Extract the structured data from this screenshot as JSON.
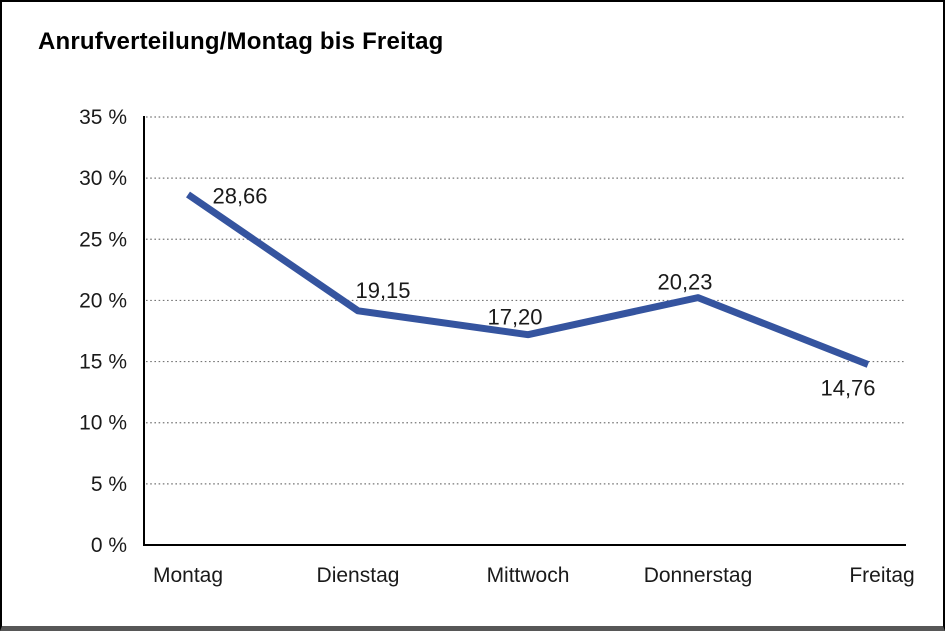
{
  "title": "Anrufverteilung/Montag bis Freitag",
  "chart_data": {
    "type": "line",
    "title": "Anrufverteilung/Montag bis Freitag",
    "categories": [
      "Montag",
      "Dienstag",
      "Mittwoch",
      "Donnerstag",
      "Freitag"
    ],
    "series": [
      {
        "name": "Anrufverteilung",
        "values": [
          28.66,
          19.15,
          17.2,
          20.23,
          14.76
        ]
      }
    ],
    "point_labels": [
      "28,66",
      "19,15",
      "17,20",
      "20,23",
      "14,76"
    ],
    "y_tick_values": [
      0,
      5,
      10,
      15,
      20,
      25,
      30,
      35
    ],
    "y_tick_labels": [
      "0 %",
      "5 %",
      "10 %",
      "15 %",
      "20 %",
      "25 %",
      "30 %",
      "35 %"
    ],
    "xlabel": "",
    "ylabel": "",
    "ylim": [
      0,
      35
    ],
    "grid": "horizontal-dotted",
    "legend": "none",
    "colors": {
      "line": "#35549F",
      "axis": "#000000",
      "gridline": "#777777",
      "text": "#1a1a1a",
      "frame_bottom": "#575757"
    }
  }
}
